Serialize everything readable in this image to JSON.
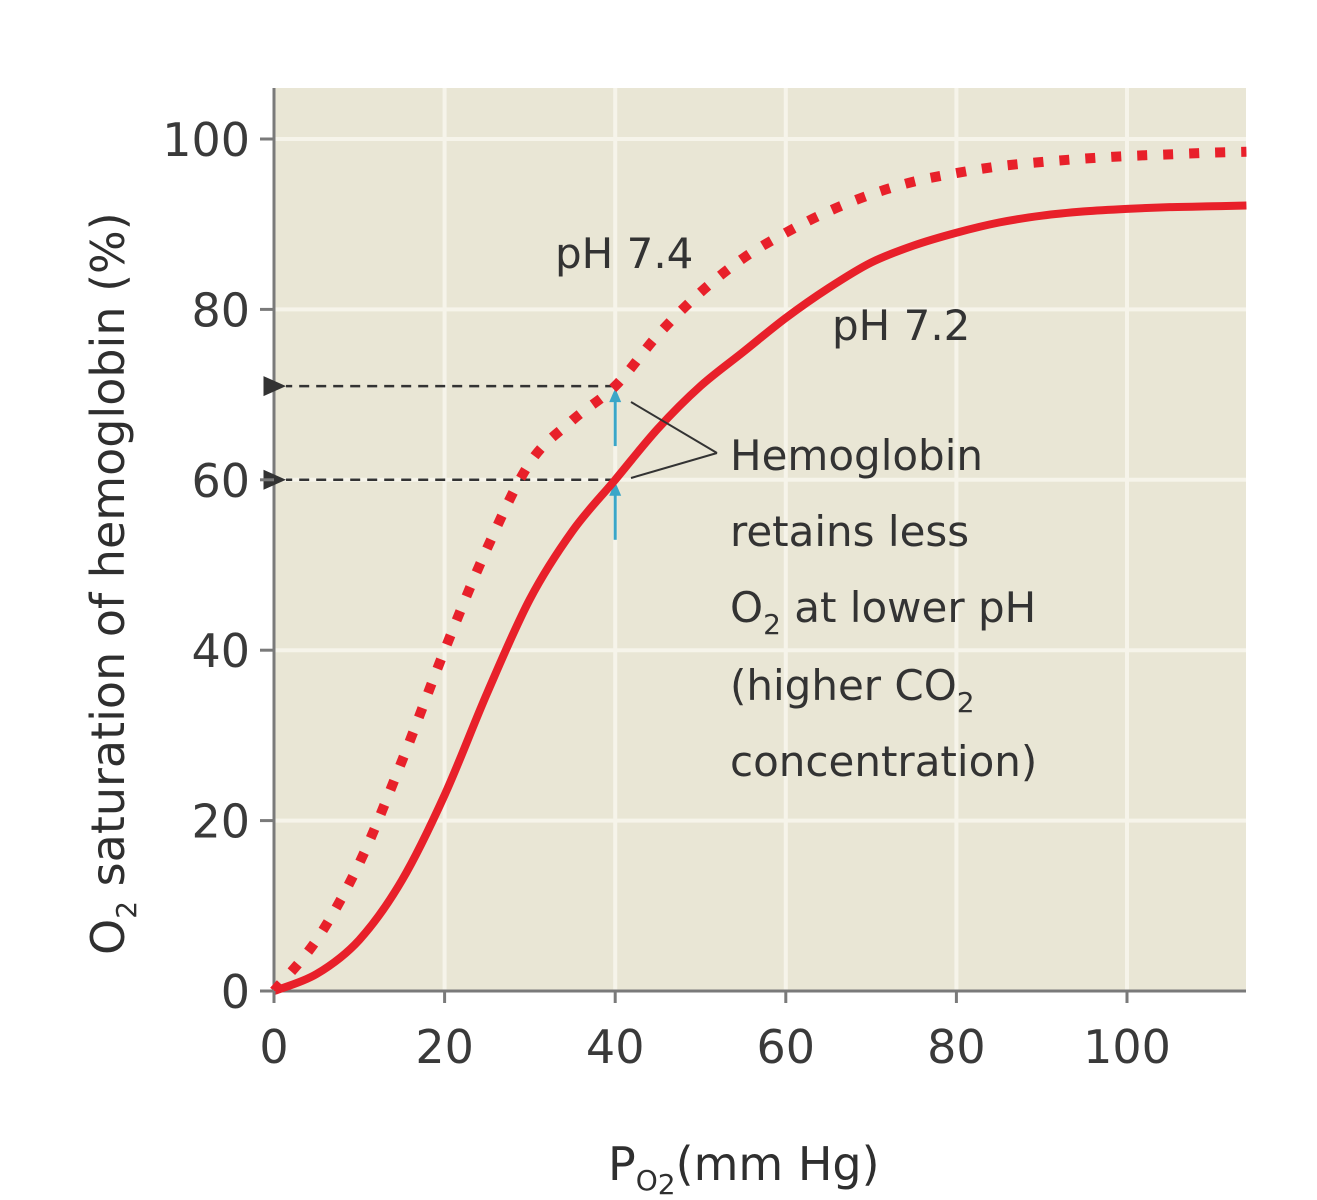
{
  "chart_data": {
    "type": "line",
    "xlabel": {
      "main": "P",
      "sub": "O",
      "sub2": "2",
      "rest": "(mm Hg)"
    },
    "ylabel": {
      "main": "O",
      "sub": "2",
      "rest": " saturation of hemoglobin (%)"
    },
    "xlim": [
      0,
      114
    ],
    "ylim": [
      0,
      106
    ],
    "x_ticks": [
      "0",
      "20",
      "40",
      "60",
      "80",
      "100"
    ],
    "y_ticks": [
      "0",
      "20",
      "40",
      "60",
      "80",
      "100"
    ],
    "grid": true,
    "series": [
      {
        "name": "pH 7.4",
        "style": "dotted",
        "color": "#e8202a",
        "x": [
          0,
          5,
          10,
          15,
          20,
          25,
          30,
          35,
          40,
          45,
          50,
          55,
          60,
          65,
          70,
          75,
          80,
          85,
          90,
          95,
          100,
          105,
          110,
          114
        ],
        "y": [
          0,
          6,
          15,
          27,
          40,
          52,
          62,
          67,
          71,
          77,
          82,
          86,
          89,
          91.5,
          93.5,
          95,
          96,
          96.8,
          97.3,
          97.7,
          98,
          98.2,
          98.4,
          98.5
        ]
      },
      {
        "name": "pH 7.2",
        "style": "solid",
        "color": "#e8202a",
        "x": [
          0,
          5,
          10,
          15,
          20,
          25,
          30,
          35,
          40,
          45,
          50,
          55,
          60,
          65,
          70,
          75,
          80,
          85,
          90,
          95,
          100,
          105,
          110,
          114
        ],
        "y": [
          0,
          2,
          6,
          13,
          23,
          35,
          46,
          54,
          60,
          66,
          71,
          75,
          79,
          82.5,
          85.5,
          87.5,
          89,
          90.2,
          91,
          91.5,
          91.8,
          92,
          92.1,
          92.2
        ]
      }
    ],
    "reference_lines": [
      {
        "x": 40,
        "y": 71
      },
      {
        "x": 40,
        "y": 60
      }
    ],
    "annotation": {
      "lines": [
        "Hemoglobin",
        "retains less"
      ],
      "line3": {
        "a": "O",
        "sub": "2",
        "b": " at lower pH"
      },
      "line4": {
        "a": "(higher CO",
        "sub": "2"
      },
      "line5": "concentration)"
    },
    "colors": {
      "plot_bg": "#e9e6d5",
      "grid": "#f6f4ea",
      "curve": "#e8202a",
      "arrow": "#3aa6c8",
      "axis": "#7a7a7a"
    }
  }
}
